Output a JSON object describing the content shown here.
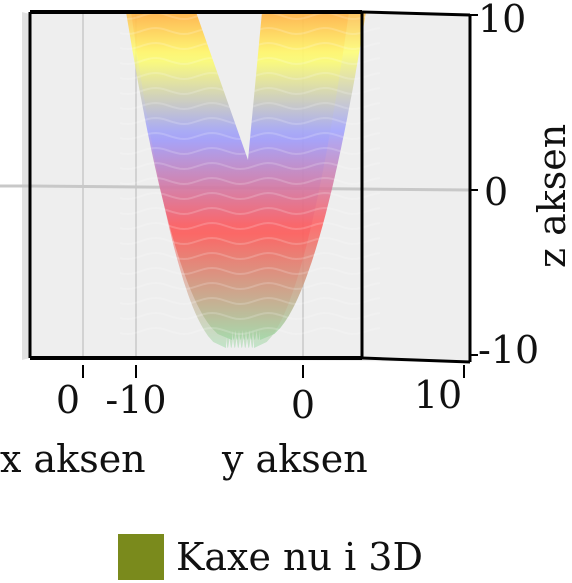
{
  "chart_data": {
    "type": "surface3d",
    "x_axis": {
      "label": "x aksen",
      "ticks": [
        "0"
      ]
    },
    "y_axis": {
      "label": "y aksen",
      "ticks": [
        "-10",
        "0",
        "10"
      ],
      "range": [
        -10,
        10
      ]
    },
    "z_axis": {
      "label": "z aksen",
      "ticks": [
        "10",
        "0",
        "-10"
      ],
      "range": [
        -10,
        10
      ]
    },
    "legend": {
      "position": "bottom",
      "entries": [
        {
          "label": "Kaxe nu i 3D",
          "color": "#7a8a1c"
        }
      ]
    },
    "surface": {
      "shape": "parabolic trough",
      "z_min": -9.5,
      "colorscale": [
        "#9fdcaa",
        "#ff5a5a",
        "#9ea0ff",
        "#ffff70",
        "#ff8530"
      ]
    },
    "box": "back panels grey, front frame black",
    "grid": true
  }
}
